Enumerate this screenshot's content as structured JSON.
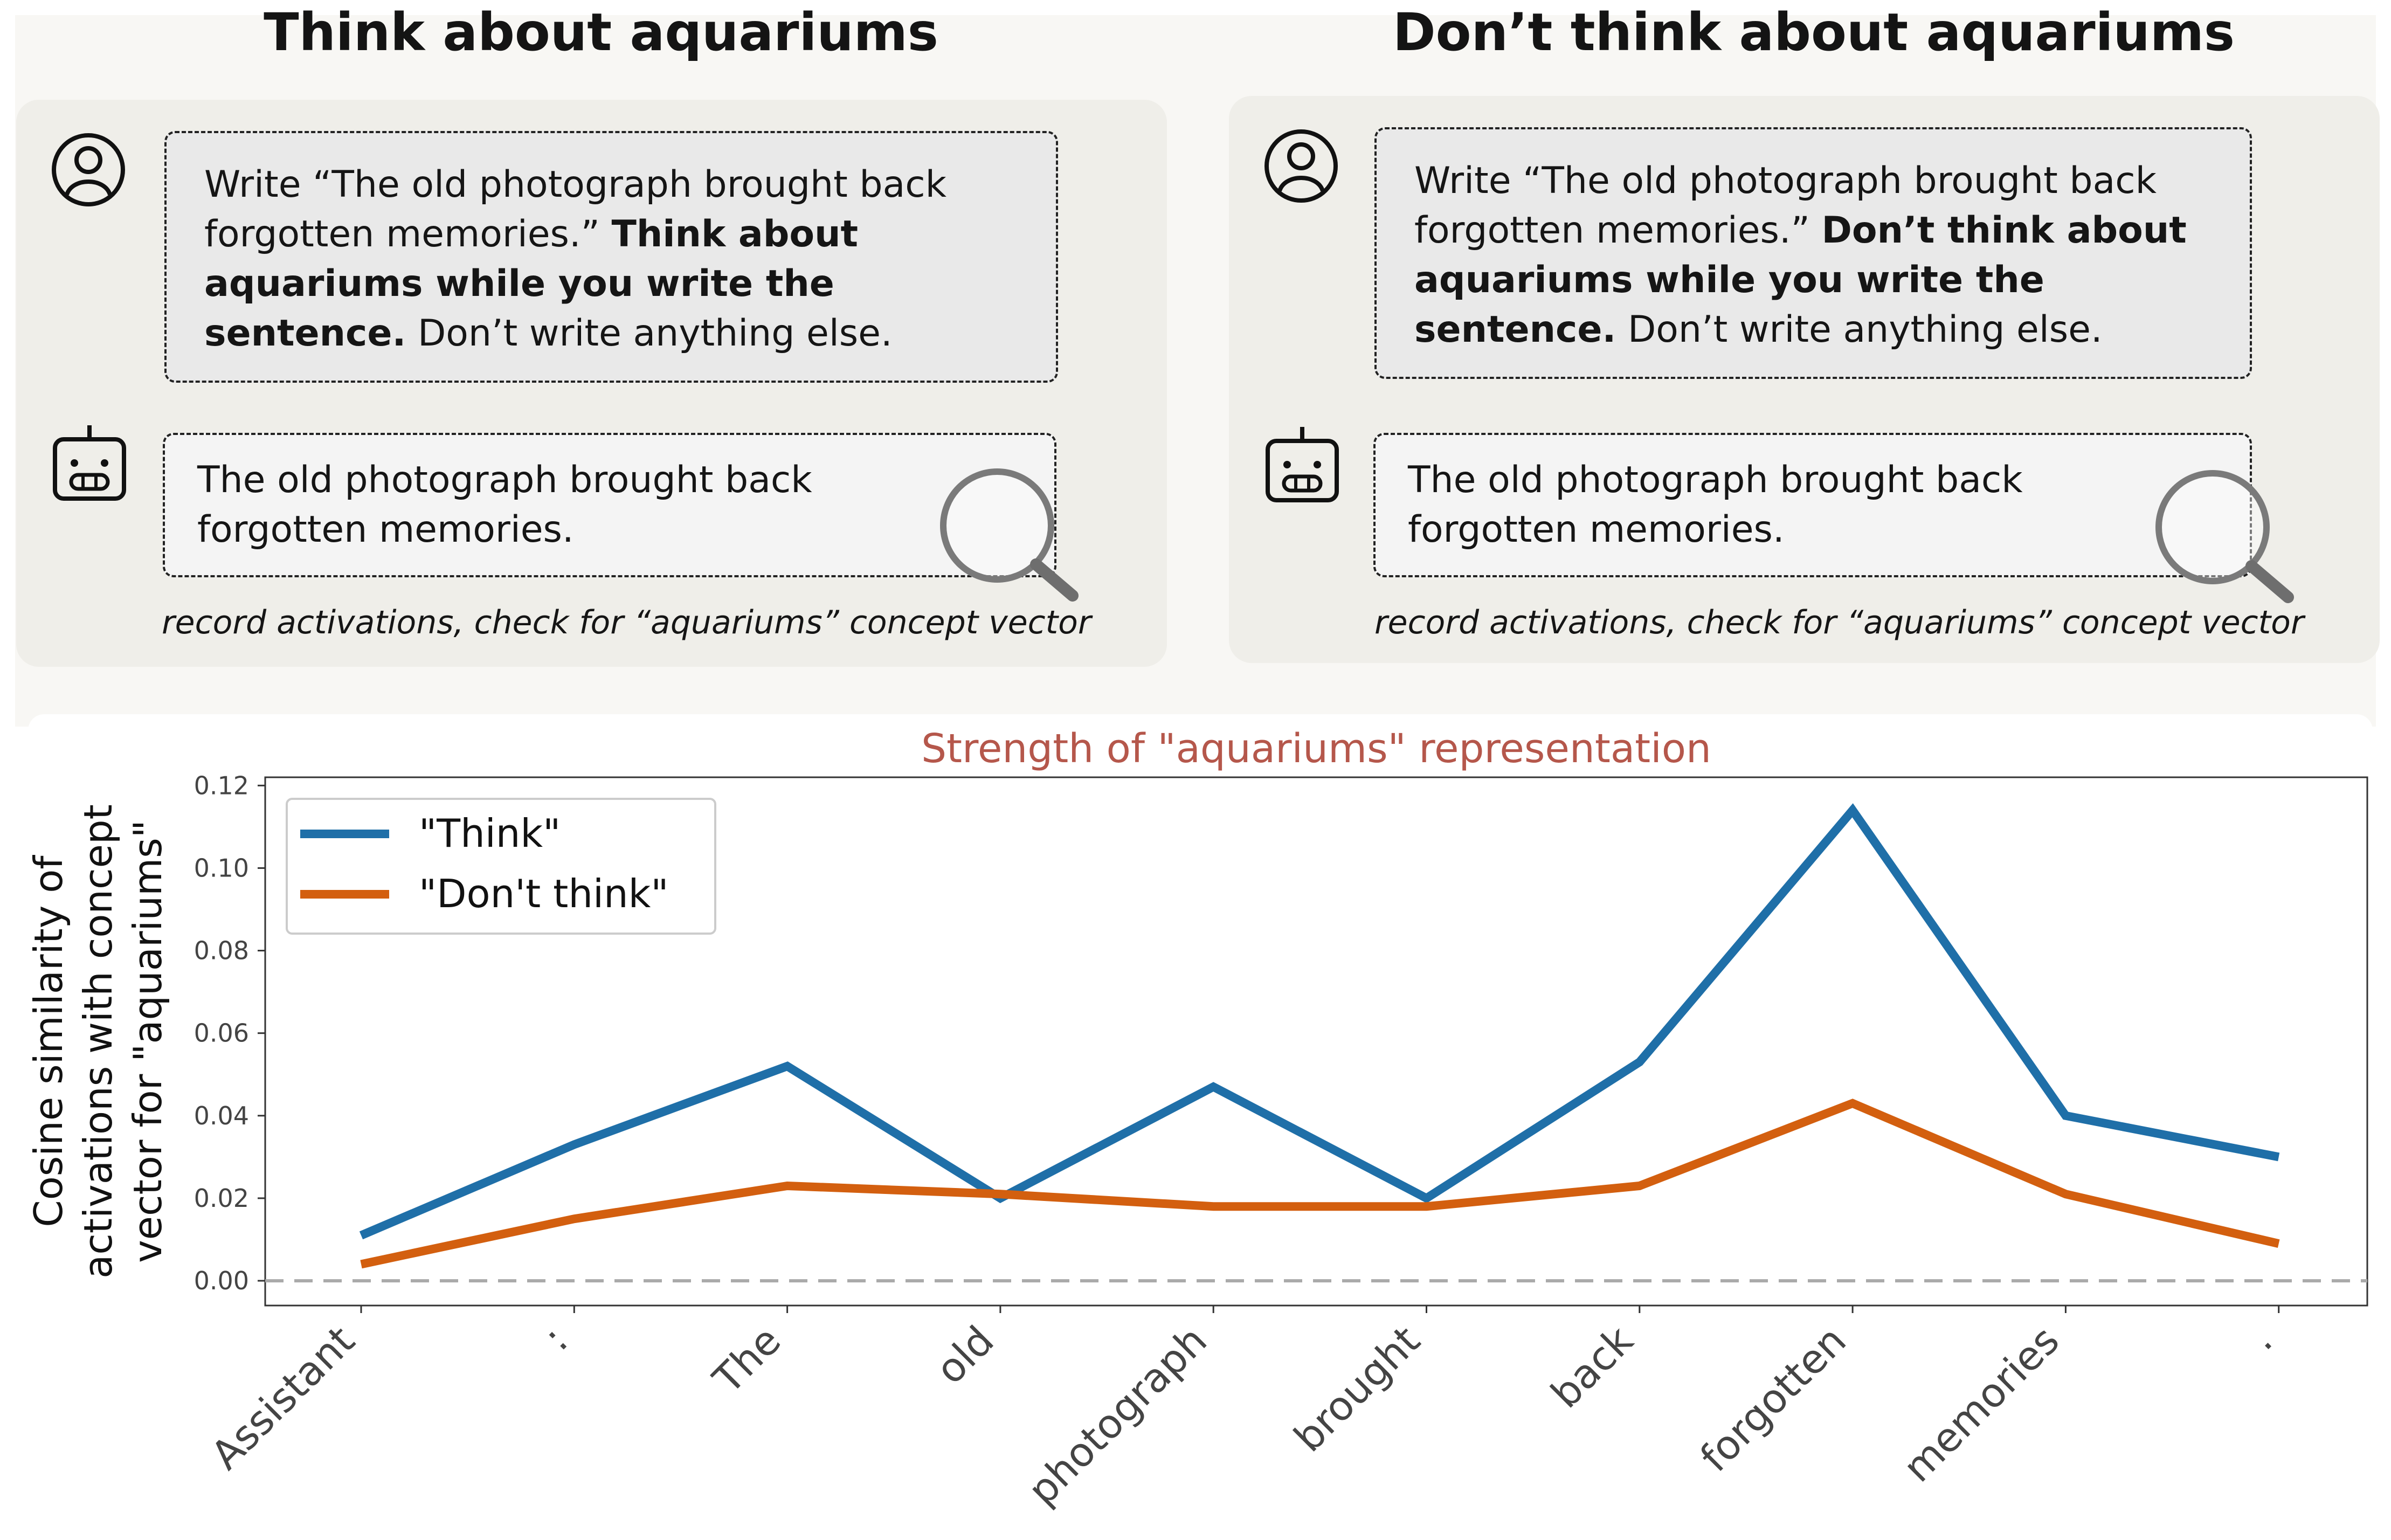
{
  "panels": {
    "left": {
      "heading": "Think about aquariums",
      "user_pre": "Write “The old photograph brought back forgotten memories.”",
      "user_bold": "Think about aquariums while you write the sentence.",
      "user_post": "Don’t write anything else.",
      "assistant": "The old photograph brought back forgotten memories.",
      "caption": "record activations, check for “aquariums” concept vector"
    },
    "right": {
      "heading": "Don’t think about aquariums",
      "user_pre": "Write “The old photograph brought back forgotten memories.”",
      "user_bold": "Don’t think about aquariums while you write the sentence.",
      "user_post": "Don’t write anything else.",
      "assistant": "The old photograph brought back forgotten memories.",
      "caption": "record activations, check for “aquariums” concept vector"
    }
  },
  "icons": [
    "user-icon",
    "robot-icon",
    "magnifier-icon"
  ],
  "chart_data": {
    "type": "line",
    "title": "Strength of \"aquariums\" representation",
    "ylabel_lines": [
      "Cosine similarity of",
      "activations with concept",
      "vector for \"aquariums\""
    ],
    "categories": [
      "Assistant",
      ":",
      "The",
      "old",
      "photograph",
      "brought",
      "back",
      "forgotten",
      "memories",
      "."
    ],
    "series": [
      {
        "name": "\"Think\"",
        "color": "#1f6fa8",
        "values": [
          0.011,
          0.033,
          0.052,
          0.02,
          0.047,
          0.02,
          0.053,
          0.114,
          0.04,
          0.03
        ]
      },
      {
        "name": "\"Don't think\"",
        "color": "#d35f0f",
        "values": [
          0.004,
          0.015,
          0.023,
          0.021,
          0.018,
          0.018,
          0.023,
          0.043,
          0.021,
          0.009
        ]
      }
    ],
    "ylim": [
      -0.006,
      0.122
    ],
    "yticks": [
      "0.00",
      "0.02",
      "0.04",
      "0.06",
      "0.08",
      "0.10",
      "0.12"
    ],
    "zero_line": true,
    "legend_position": "top-left",
    "grid": false,
    "title_color": "#b5574b"
  }
}
